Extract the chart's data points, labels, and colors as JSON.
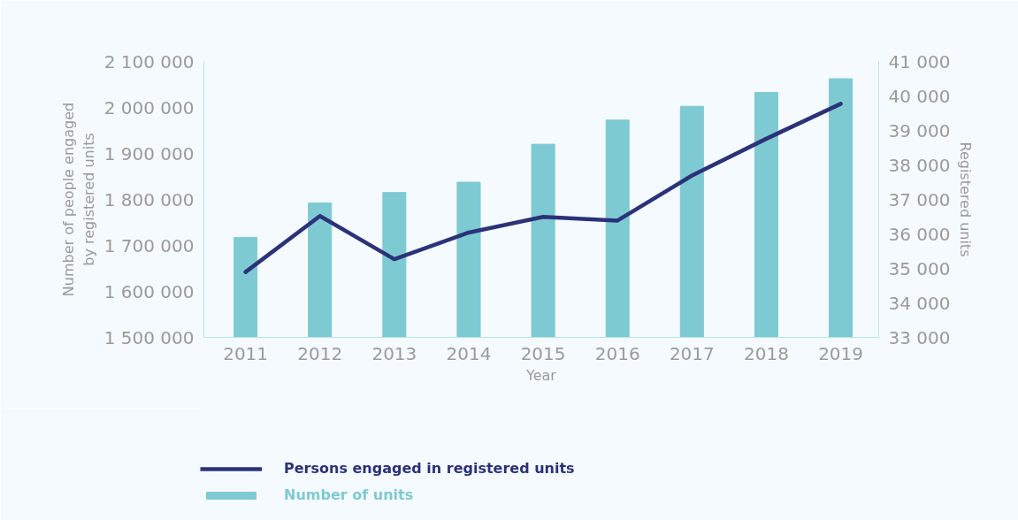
{
  "chart_data": {
    "type": "bar",
    "xlabel": "Year",
    "ylabel": "Number of people engaged\nby registered units",
    "y2label": "Registered units",
    "categories": [
      "2011",
      "2012",
      "2013",
      "2014",
      "2015",
      "2016",
      "2017",
      "2018",
      "2019"
    ],
    "series": [
      {
        "name": "Persons engaged in registered units",
        "type": "line",
        "color": "#2b3278",
        "values": [
          1642000,
          1764000,
          1670000,
          1728000,
          1762000,
          1754000,
          1852000,
          1932000,
          2008000
        ]
      },
      {
        "name": "Number of units",
        "axis": "y2",
        "color": "#7ecad3",
        "values": [
          35900,
          36900,
          37200,
          37500,
          38600,
          39300,
          39700,
          40100,
          40500
        ]
      }
    ],
    "ylim": [
      1500000,
      2100000
    ],
    "yticks": [
      {
        "value": 1500000,
        "label": "1 500 000"
      },
      {
        "value": 1600000,
        "label": "1 600 000"
      },
      {
        "value": 1700000,
        "label": "1 700 000"
      },
      {
        "value": 1800000,
        "label": "1 800 000"
      },
      {
        "value": 1900000,
        "label": "1 900 000"
      },
      {
        "value": 2000000,
        "label": "2 000 000"
      },
      {
        "value": 2100000,
        "label": "2 100 000"
      }
    ],
    "y2lim": [
      33000,
      41000
    ],
    "y2ticks": [
      {
        "value": 33000,
        "label": "33 000"
      },
      {
        "value": 34000,
        "label": "34 000"
      },
      {
        "value": 35000,
        "label": "35 000"
      },
      {
        "value": 36000,
        "label": "36 000"
      },
      {
        "value": 37000,
        "label": "37 000"
      },
      {
        "value": 38000,
        "label": "38 000"
      },
      {
        "value": 39000,
        "label": "39 000"
      },
      {
        "value": 40000,
        "label": "40 000"
      },
      {
        "value": 41000,
        "label": "41 000"
      }
    ],
    "grid": false,
    "legend": "bottom left"
  }
}
